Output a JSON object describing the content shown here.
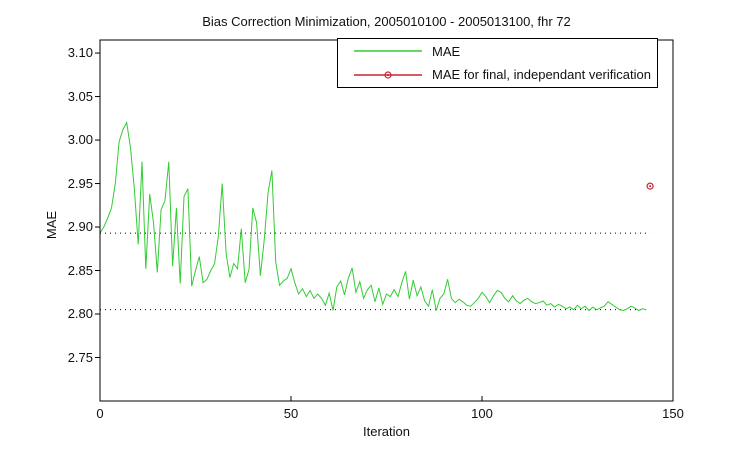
{
  "chart_data": {
    "type": "line",
    "title": "Bias Correction Minimization, 2005010100 - 2005013100, fhr 72",
    "xlabel": "Iteration",
    "ylabel": "MAE",
    "xlim": [
      0,
      150
    ],
    "ylim": [
      2.7,
      3.115
    ],
    "x_ticks": [
      0,
      50,
      100,
      150
    ],
    "y_ticks": [
      2.75,
      2.8,
      2.85,
      2.9,
      2.95,
      3.0,
      3.05,
      3.1
    ],
    "grid": false,
    "legend_position": "upper center-right inset box",
    "legend": [
      {
        "label": "MAE",
        "color": "#33cc33",
        "marker": "none"
      },
      {
        "label": "MAE for final, independant verification",
        "color": "#cc2233",
        "marker": "circle"
      }
    ],
    "series": [
      {
        "name": "MAE",
        "color": "#33cc33",
        "x_start": 0,
        "x_step": 1,
        "values": [
          2.893,
          2.9,
          2.91,
          2.922,
          2.95,
          2.998,
          3.012,
          3.02,
          2.99,
          2.943,
          2.88,
          2.975,
          2.852,
          2.938,
          2.905,
          2.848,
          2.92,
          2.93,
          2.975,
          2.855,
          2.922,
          2.835,
          2.935,
          2.944,
          2.832,
          2.85,
          2.866,
          2.836,
          2.84,
          2.85,
          2.858,
          2.89,
          2.95,
          2.87,
          2.842,
          2.858,
          2.852,
          2.898,
          2.836,
          2.851,
          2.922,
          2.905,
          2.844,
          2.886,
          2.94,
          2.965,
          2.86,
          2.833,
          2.838,
          2.841,
          2.852,
          2.836,
          2.823,
          2.829,
          2.82,
          2.827,
          2.818,
          2.823,
          2.818,
          2.81,
          2.824,
          2.804,
          2.831,
          2.838,
          2.822,
          2.841,
          2.853,
          2.825,
          2.837,
          2.818,
          2.828,
          2.833,
          2.814,
          2.83,
          2.811,
          2.823,
          2.82,
          2.828,
          2.82,
          2.836,
          2.849,
          2.817,
          2.839,
          2.821,
          2.831,
          2.815,
          2.809,
          2.828,
          2.804,
          2.818,
          2.823,
          2.84,
          2.818,
          2.813,
          2.817,
          2.814,
          2.81,
          2.809,
          2.813,
          2.818,
          2.825,
          2.82,
          2.813,
          2.821,
          2.827,
          2.825,
          2.818,
          2.814,
          2.821,
          2.815,
          2.812,
          2.816,
          2.818,
          2.814,
          2.812,
          2.813,
          2.815,
          2.81,
          2.812,
          2.808,
          2.811,
          2.809,
          2.806,
          2.808,
          2.805,
          2.81,
          2.806,
          2.809,
          2.804,
          2.808,
          2.805,
          2.807,
          2.809,
          2.814,
          2.811,
          2.808,
          2.805,
          2.804,
          2.806,
          2.809,
          2.807,
          2.804,
          2.806,
          2.805
        ]
      }
    ],
    "points": [
      {
        "name": "MAE for final, independant verification",
        "color": "#cc2233",
        "marker": "circle",
        "x": 144,
        "y": 2.947
      }
    ],
    "reference_lines": [
      {
        "y": 2.893,
        "color": "#000000",
        "style": "dotted",
        "x_range": [
          0,
          144
        ]
      },
      {
        "y": 2.805,
        "color": "#000000",
        "style": "dotted",
        "x_range": [
          0,
          144
        ]
      }
    ]
  }
}
